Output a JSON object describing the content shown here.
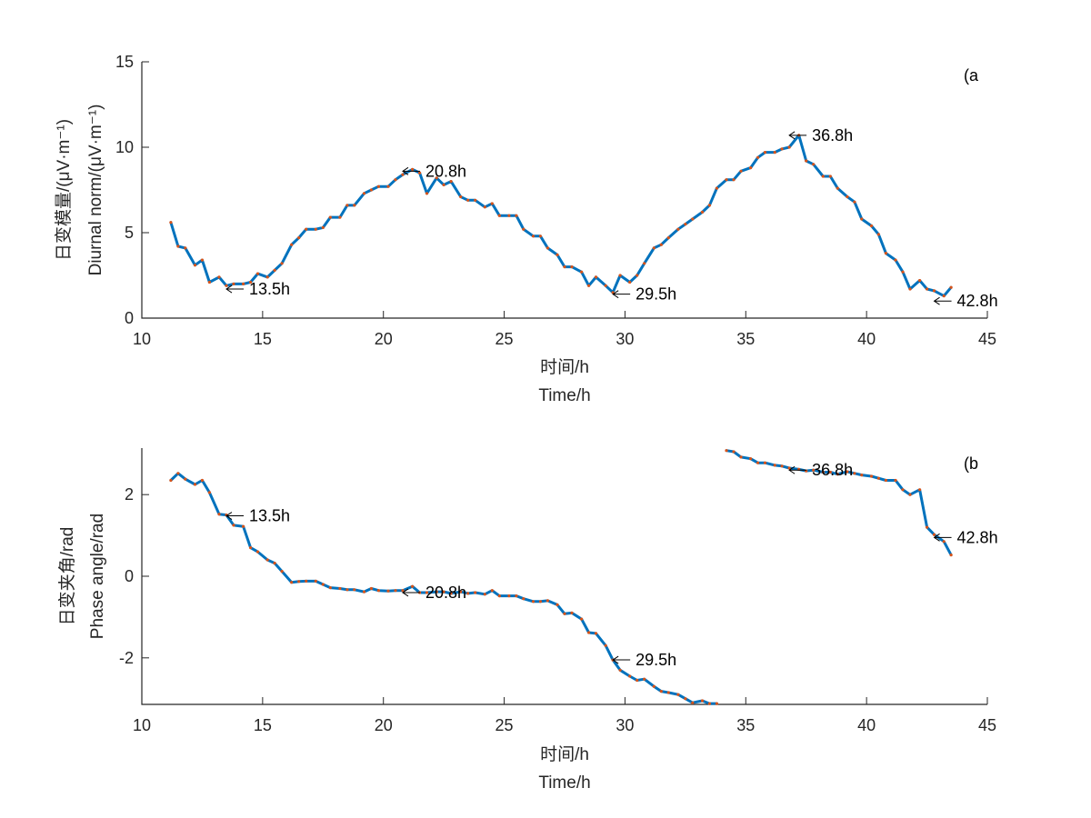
{
  "colors": {
    "line": "#0072BD",
    "marker": "#D95319",
    "axis": "#262626"
  },
  "chart_data": [
    {
      "type": "line",
      "panel_tag": "(a",
      "xlabel_cn": "时间/h",
      "xlabel_en": "Time/h",
      "ylabel_cn": "日变模量/(μV·m⁻¹)",
      "ylabel_en": "Diurnal norm/(μV·m⁻¹)",
      "xlim": [
        10,
        45
      ],
      "ylim": [
        0,
        15
      ],
      "xticks": [
        "10",
        "15",
        "20",
        "25",
        "30",
        "35",
        "40",
        "45"
      ],
      "yticks": [
        "0",
        "5",
        "10",
        "15"
      ],
      "x": [
        11.2,
        11.5,
        11.8,
        12.2,
        12.5,
        12.8,
        13.2,
        13.5,
        13.8,
        14.2,
        14.5,
        14.8,
        15.2,
        15.5,
        15.8,
        16.2,
        16.5,
        16.8,
        17.2,
        17.5,
        17.8,
        18.2,
        18.5,
        18.8,
        19.2,
        19.5,
        19.8,
        20.2,
        20.5,
        20.8,
        21.2,
        21.5,
        21.8,
        22.2,
        22.5,
        22.8,
        23.2,
        23.5,
        23.8,
        24.2,
        24.5,
        24.8,
        25.2,
        25.5,
        25.8,
        26.2,
        26.5,
        26.8,
        27.2,
        27.5,
        27.8,
        28.2,
        28.5,
        28.8,
        29.2,
        29.5,
        29.8,
        30.2,
        30.5,
        30.8,
        31.2,
        31.5,
        31.8,
        32.2,
        32.5,
        32.8,
        33.2,
        33.5,
        33.8,
        34.2,
        34.5,
        34.8,
        35.2,
        35.5,
        35.8,
        36.2,
        36.5,
        36.8,
        37.2,
        37.5,
        37.8,
        38.2,
        38.5,
        38.8,
        39.2,
        39.5,
        39.8,
        40.2,
        40.5,
        40.8,
        41.2,
        41.5,
        41.8,
        42.2,
        42.5,
        42.8,
        43.2,
        43.5
      ],
      "y": [
        5.6,
        4.2,
        4.1,
        3.1,
        3.4,
        2.1,
        2.4,
        1.9,
        2.0,
        2.0,
        2.1,
        2.6,
        2.4,
        2.8,
        3.2,
        4.3,
        4.7,
        5.2,
        5.2,
        5.3,
        5.9,
        5.9,
        6.6,
        6.6,
        7.3,
        7.5,
        7.7,
        7.7,
        8.1,
        8.4,
        8.7,
        8.5,
        7.3,
        8.2,
        7.8,
        8.0,
        7.1,
        6.9,
        6.9,
        6.5,
        6.7,
        6.0,
        6.0,
        6.0,
        5.2,
        4.8,
        4.8,
        4.1,
        3.7,
        3.0,
        3.0,
        2.7,
        1.9,
        2.4,
        1.9,
        1.5,
        2.5,
        2.1,
        2.5,
        3.2,
        4.1,
        4.3,
        4.7,
        5.2,
        5.5,
        5.8,
        6.2,
        6.6,
        7.6,
        8.1,
        8.1,
        8.6,
        8.8,
        9.4,
        9.7,
        9.7,
        9.9,
        10.0,
        10.7,
        9.2,
        9.0,
        8.3,
        8.3,
        7.6,
        7.1,
        6.8,
        5.8,
        5.4,
        4.9,
        3.8,
        3.4,
        2.7,
        1.7,
        2.2,
        1.7,
        1.6,
        1.3,
        1.8
      ],
      "annotations": [
        {
          "label": "13.5h",
          "x": 13.5,
          "y": 1.7
        },
        {
          "label": "20.8h",
          "x": 20.8,
          "y": 8.6
        },
        {
          "label": "29.5h",
          "x": 29.5,
          "y": 1.4
        },
        {
          "label": "36.8h",
          "x": 36.8,
          "y": 10.7
        },
        {
          "label": "42.8h",
          "x": 42.8,
          "y": 1.0
        }
      ]
    },
    {
      "type": "line",
      "panel_tag": "(b",
      "xlabel_cn": "时间/h",
      "xlabel_en": "Time/h",
      "ylabel_cn": "日变夹角/rad",
      "ylabel_en": "Phase angle/rad",
      "xlim": [
        10,
        45
      ],
      "ylim": [
        -3.14,
        3.14
      ],
      "xticks": [
        "10",
        "15",
        "20",
        "25",
        "30",
        "35",
        "40",
        "45"
      ],
      "yticks": [
        "-2",
        "0",
        "2"
      ],
      "ytick_values": [
        -2,
        0,
        2
      ],
      "x": [
        11.2,
        11.5,
        11.8,
        12.2,
        12.5,
        12.8,
        13.2,
        13.5,
        13.8,
        14.2,
        14.5,
        14.8,
        15.2,
        15.5,
        15.8,
        16.2,
        16.5,
        16.8,
        17.2,
        17.5,
        17.8,
        18.2,
        18.5,
        18.8,
        19.2,
        19.5,
        19.8,
        20.2,
        20.5,
        20.8,
        21.2,
        21.5,
        21.8,
        22.2,
        22.5,
        22.8,
        23.2,
        23.5,
        23.8,
        24.2,
        24.5,
        24.8,
        25.2,
        25.5,
        25.8,
        26.2,
        26.5,
        26.8,
        27.2,
        27.5,
        27.8,
        28.2,
        28.5,
        28.8,
        29.2,
        29.5,
        29.8,
        30.2,
        30.5,
        30.8,
        31.2,
        31.5,
        31.8,
        32.2,
        32.5,
        32.8,
        33.2,
        33.5,
        33.8,
        null,
        34.2,
        34.5,
        34.8,
        35.2,
        35.5,
        35.8,
        36.2,
        36.5,
        36.8,
        37.2,
        37.5,
        37.8,
        38.2,
        38.5,
        38.8,
        39.2,
        39.5,
        39.8,
        40.2,
        40.5,
        40.8,
        41.2,
        41.5,
        41.8,
        42.2,
        42.5,
        42.8,
        43.2,
        43.5
      ],
      "y": [
        2.35,
        2.52,
        2.38,
        2.25,
        2.35,
        2.05,
        1.52,
        1.5,
        1.25,
        1.22,
        0.7,
        0.6,
        0.4,
        0.32,
        0.12,
        -0.15,
        -0.13,
        -0.12,
        -0.12,
        -0.2,
        -0.28,
        -0.3,
        -0.33,
        -0.33,
        -0.38,
        -0.3,
        -0.35,
        -0.36,
        -0.35,
        -0.35,
        -0.25,
        -0.4,
        -0.4,
        -0.38,
        -0.38,
        -0.42,
        -0.38,
        -0.42,
        -0.4,
        -0.44,
        -0.35,
        -0.48,
        -0.48,
        -0.48,
        -0.55,
        -0.62,
        -0.62,
        -0.6,
        -0.7,
        -0.92,
        -0.9,
        -1.05,
        -1.38,
        -1.4,
        -1.7,
        -2.05,
        -2.3,
        -2.45,
        -2.55,
        -2.52,
        -2.7,
        -2.82,
        -2.85,
        -2.9,
        -3.0,
        -3.1,
        -3.05,
        -3.12,
        -3.12,
        null,
        3.08,
        3.05,
        2.92,
        2.88,
        2.78,
        2.78,
        2.72,
        2.7,
        2.65,
        2.62,
        2.58,
        2.6,
        2.55,
        2.55,
        2.5,
        2.56,
        2.52,
        2.48,
        2.45,
        2.4,
        2.35,
        2.35,
        2.12,
        2.0,
        2.12,
        1.2,
        1.02,
        0.85,
        0.52
      ],
      "annotations": [
        {
          "label": "13.5h",
          "x": 13.5,
          "y": 1.48
        },
        {
          "label": "20.8h",
          "x": 20.8,
          "y": -0.4
        },
        {
          "label": "29.5h",
          "x": 29.5,
          "y": -2.05
        },
        {
          "label": "36.8h",
          "x": 36.8,
          "y": 2.6
        },
        {
          "label": "42.8h",
          "x": 42.8,
          "y": 0.95
        }
      ]
    }
  ]
}
